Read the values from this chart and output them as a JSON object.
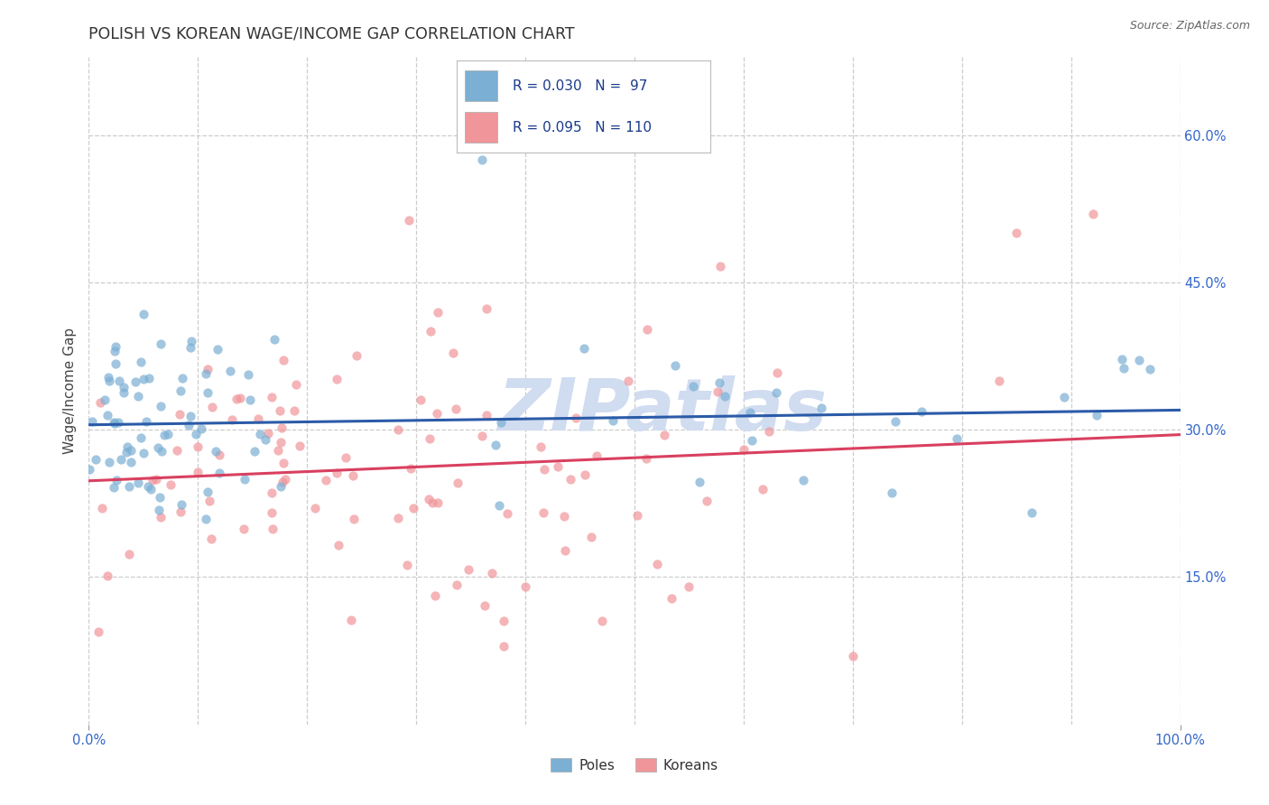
{
  "title": "POLISH VS KOREAN WAGE/INCOME GAP CORRELATION CHART",
  "source_text": "Source: ZipAtlas.com",
  "ylabel": "Wage/Income Gap",
  "xlim": [
    0.0,
    1.0
  ],
  "ylim": [
    0.0,
    0.68
  ],
  "xtick_positions": [
    0.0,
    1.0
  ],
  "xtick_labels": [
    "0.0%",
    "100.0%"
  ],
  "yticks": [
    0.15,
    0.3,
    0.45,
    0.6
  ],
  "ytick_labels": [
    "15.0%",
    "30.0%",
    "45.0%",
    "60.0%"
  ],
  "grid_xticks": [
    0.0,
    0.1,
    0.2,
    0.3,
    0.4,
    0.5,
    0.6,
    0.7,
    0.8,
    0.9,
    1.0
  ],
  "poles_color": "#7BAFD4",
  "koreans_color": "#F0959A",
  "trend_poles_color": "#2B5BA8",
  "trend_koreans_color": "#D94060",
  "watermark_color": "#D0DCF0",
  "legend_label_poles": "Poles",
  "legend_label_koreans": "Koreans",
  "R_poles": 0.03,
  "N_poles": 97,
  "R_koreans": 0.095,
  "N_koreans": 110,
  "trend_poles_x0": 0.0,
  "trend_poles_y0": 0.305,
  "trend_poles_x1": 1.0,
  "trend_poles_y1": 0.32,
  "trend_koreans_x0": 0.0,
  "trend_koreans_y0": 0.248,
  "trend_koreans_x1": 1.0,
  "trend_koreans_y1": 0.295
}
